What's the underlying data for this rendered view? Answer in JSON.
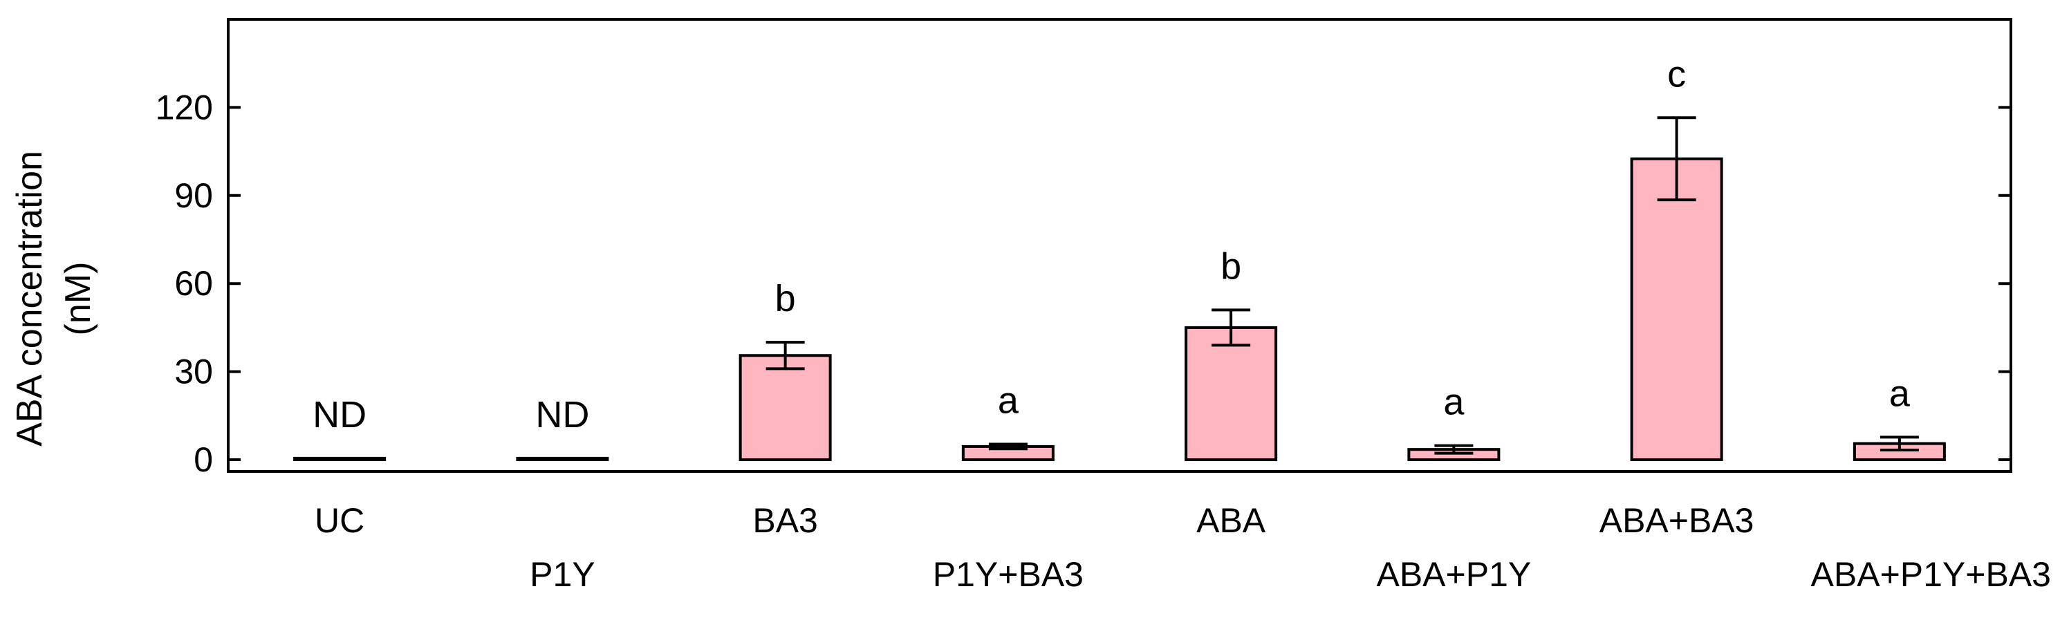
{
  "chart_data": {
    "type": "bar",
    "title": "",
    "xlabel": "",
    "ylabel": [
      "ABA concentration",
      "(nM)"
    ],
    "ylim": [
      -4,
      150
    ],
    "yticks": [
      0,
      30,
      60,
      90,
      120
    ],
    "grid": false,
    "categories": [
      "UC",
      "P1Y",
      "BA3",
      "P1Y+BA3",
      "ABA",
      "ABA+P1Y",
      "ABA+BA3",
      "ABA+P1Y+BA3"
    ],
    "values": [
      0.5,
      0.5,
      35.5,
      4.5,
      45,
      3.5,
      102.5,
      5.5
    ],
    "errors": [
      0,
      0,
      4.5,
      0.8,
      6,
      1.3,
      14,
      2.2
    ],
    "annotations": [
      "ND",
      "ND",
      "b",
      "a",
      "b",
      "a",
      "c",
      "a"
    ],
    "bar_color": "#ffb6c1",
    "edge_color": "#000000"
  }
}
